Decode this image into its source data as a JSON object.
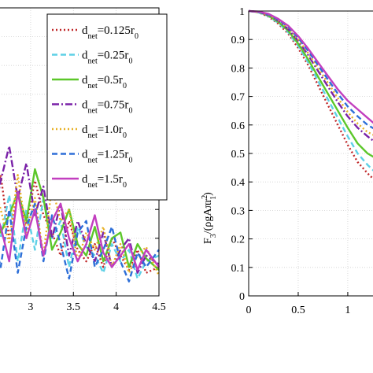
{
  "chart_data": [
    {
      "type": "line",
      "title": "",
      "xlabel": "",
      "ylabel": "",
      "x_ticks": [
        "3",
        "3.5",
        "4",
        "4.5"
      ],
      "xlim": [
        2.55,
        4.5
      ],
      "ylim": [
        0,
        1
      ],
      "grid": true,
      "legend_position": "top-right",
      "series": [
        {
          "name": "d_net=0.125r_0",
          "label_main": "d",
          "label_sub": "net",
          "label_rest": "=0.125r",
          "label_sub2": "0",
          "color": "#c0282a",
          "dash": "2,3",
          "x": [
            2.55,
            2.65,
            2.75,
            2.85,
            2.95,
            3.05,
            3.15,
            3.25,
            3.35,
            3.45,
            3.55,
            3.65,
            3.75,
            3.85,
            3.95,
            4.05,
            4.15,
            4.25,
            4.35,
            4.5
          ],
          "y": [
            0.33,
            0.42,
            0.2,
            0.36,
            0.25,
            0.4,
            0.28,
            0.22,
            0.14,
            0.26,
            0.16,
            0.12,
            0.18,
            0.1,
            0.2,
            0.14,
            0.09,
            0.16,
            0.08,
            0.1
          ]
        },
        {
          "name": "d_net=0.25r_0",
          "label_main": "d",
          "label_sub": "net",
          "label_rest": "=0.25r",
          "label_sub2": "0",
          "color": "#5ed0e6",
          "dash": "7,4",
          "x": [
            2.55,
            2.65,
            2.75,
            2.85,
            2.95,
            3.05,
            3.15,
            3.25,
            3.35,
            3.45,
            3.55,
            3.65,
            3.75,
            3.85,
            3.95,
            4.05,
            4.15,
            4.25,
            4.35,
            4.5
          ],
          "y": [
            0.28,
            0.2,
            0.35,
            0.12,
            0.3,
            0.16,
            0.34,
            0.2,
            0.26,
            0.1,
            0.24,
            0.17,
            0.14,
            0.08,
            0.18,
            0.12,
            0.16,
            0.06,
            0.12,
            0.14
          ]
        },
        {
          "name": "d_net=0.5r_0",
          "label_main": "d",
          "label_sub": "net",
          "label_rest": "=0.5r",
          "label_sub2": "0",
          "color": "#5cc72a",
          "dash": "",
          "x": [
            2.55,
            2.65,
            2.75,
            2.85,
            2.95,
            3.05,
            3.15,
            3.25,
            3.35,
            3.45,
            3.55,
            3.65,
            3.75,
            3.85,
            3.95,
            4.05,
            4.15,
            4.25,
            4.35,
            4.5
          ],
          "y": [
            0.3,
            0.22,
            0.28,
            0.36,
            0.26,
            0.44,
            0.34,
            0.16,
            0.22,
            0.3,
            0.18,
            0.14,
            0.24,
            0.12,
            0.2,
            0.22,
            0.1,
            0.18,
            0.13,
            0.09
          ]
        },
        {
          "name": "d_net=0.75r_0",
          "label_main": "d",
          "label_sub": "net",
          "label_rest": "=0.75r",
          "label_sub2": "0",
          "color": "#7a22a8",
          "dash": "9,3,2,3",
          "x": [
            2.55,
            2.65,
            2.75,
            2.85,
            2.95,
            3.05,
            3.15,
            3.25,
            3.35,
            3.45,
            3.55,
            3.65,
            3.75,
            3.85,
            3.95,
            4.05,
            4.15,
            4.25,
            4.35,
            4.5
          ],
          "y": [
            0.25,
            0.4,
            0.52,
            0.34,
            0.46,
            0.28,
            0.38,
            0.2,
            0.32,
            0.14,
            0.26,
            0.18,
            0.12,
            0.22,
            0.1,
            0.16,
            0.2,
            0.08,
            0.14,
            0.11
          ]
        },
        {
          "name": "d_net=1.0r_0",
          "label_main": "d",
          "label_sub": "net",
          "label_rest": "=1.0r",
          "label_sub2": "0",
          "color": "#e8b023",
          "dash": "2,3",
          "x": [
            2.55,
            2.65,
            2.75,
            2.85,
            2.95,
            3.05,
            3.15,
            3.25,
            3.35,
            3.45,
            3.55,
            3.65,
            3.75,
            3.85,
            3.95,
            4.05,
            4.15,
            4.25,
            4.35,
            4.5
          ],
          "y": [
            0.4,
            0.3,
            0.18,
            0.42,
            0.22,
            0.34,
            0.14,
            0.38,
            0.26,
            0.3,
            0.12,
            0.22,
            0.16,
            0.24,
            0.1,
            0.18,
            0.08,
            0.14,
            0.17,
            0.07
          ]
        },
        {
          "name": "d_net=1.25r_0",
          "label_main": "d",
          "label_sub": "net",
          "label_rest": "=1.25r",
          "label_sub2": "0",
          "color": "#2e6fd8",
          "dash": "7,4",
          "x": [
            2.55,
            2.65,
            2.75,
            2.85,
            2.95,
            3.05,
            3.15,
            3.25,
            3.35,
            3.45,
            3.55,
            3.65,
            3.75,
            3.85,
            3.95,
            4.05,
            4.15,
            4.25,
            4.35,
            4.5
          ],
          "y": [
            0.22,
            0.1,
            0.3,
            0.08,
            0.24,
            0.32,
            0.12,
            0.28,
            0.18,
            0.06,
            0.22,
            0.26,
            0.1,
            0.16,
            0.24,
            0.12,
            0.05,
            0.15,
            0.1,
            0.16
          ]
        },
        {
          "name": "d_net=1.5r_0",
          "label_main": "d",
          "label_sub": "net",
          "label_rest": "=1.5r",
          "label_sub2": "0",
          "color": "#c23fbf",
          "dash": "",
          "x": [
            2.55,
            2.65,
            2.75,
            2.85,
            2.95,
            3.05,
            3.15,
            3.25,
            3.35,
            3.45,
            3.55,
            3.65,
            3.75,
            3.85,
            3.95,
            4.05,
            4.15,
            4.25,
            4.35,
            4.5
          ],
          "y": [
            0.32,
            0.24,
            0.12,
            0.36,
            0.2,
            0.3,
            0.14,
            0.26,
            0.32,
            0.2,
            0.12,
            0.18,
            0.28,
            0.15,
            0.1,
            0.14,
            0.18,
            0.09,
            0.16,
            0.1
          ]
        }
      ]
    },
    {
      "type": "line",
      "title": "",
      "ylabel_main": "F",
      "ylabel_sub": "3",
      "ylabel_mid": "/(ρgAπr",
      "ylabel_sup": "2",
      "ylabel_sub2": "1",
      "ylabel_end": ")",
      "xlabel": "",
      "x_ticks": [
        "0",
        "0.5",
        "1"
      ],
      "y_ticks": [
        "0",
        "0.1",
        "0.2",
        "0.3",
        "0.4",
        "0.5",
        "0.6",
        "0.7",
        "0.8",
        "0.9",
        "1"
      ],
      "xlim": [
        0,
        1.35
      ],
      "ylim": [
        0,
        1
      ],
      "grid": true,
      "series": [
        {
          "name": "d_net=0.125r_0",
          "color": "#c0282a",
          "dash": "2,3",
          "x": [
            0,
            0.1,
            0.2,
            0.3,
            0.4,
            0.5,
            0.6,
            0.7,
            0.8,
            0.9,
            1.0,
            1.1,
            1.2,
            1.35
          ],
          "y": [
            1,
            0.995,
            0.98,
            0.955,
            0.92,
            0.87,
            0.81,
            0.74,
            0.67,
            0.6,
            0.53,
            0.47,
            0.43,
            0.38
          ]
        },
        {
          "name": "d_net=0.25r_0",
          "color": "#5ed0e6",
          "dash": "7,4",
          "x": [
            0,
            0.1,
            0.2,
            0.3,
            0.4,
            0.5,
            0.6,
            0.7,
            0.8,
            0.9,
            1.0,
            1.1,
            1.2,
            1.35
          ],
          "y": [
            1,
            0.995,
            0.982,
            0.958,
            0.925,
            0.878,
            0.82,
            0.755,
            0.69,
            0.625,
            0.56,
            0.5,
            0.46,
            0.41
          ]
        },
        {
          "name": "d_net=0.5r_0",
          "color": "#5cc72a",
          "dash": "",
          "x": [
            0,
            0.1,
            0.2,
            0.3,
            0.4,
            0.5,
            0.6,
            0.7,
            0.8,
            0.9,
            1.0,
            1.1,
            1.2,
            1.35
          ],
          "y": [
            1,
            0.996,
            0.984,
            0.962,
            0.93,
            0.885,
            0.83,
            0.77,
            0.71,
            0.65,
            0.59,
            0.535,
            0.5,
            0.47
          ]
        },
        {
          "name": "d_net=0.75r_0",
          "color": "#7a22a8",
          "dash": "9,3,2,3",
          "x": [
            0,
            0.1,
            0.2,
            0.3,
            0.4,
            0.5,
            0.6,
            0.7,
            0.8,
            0.9,
            1.0,
            1.1,
            1.2,
            1.35
          ],
          "y": [
            1,
            0.996,
            0.986,
            0.966,
            0.936,
            0.895,
            0.845,
            0.79,
            0.735,
            0.68,
            0.63,
            0.59,
            0.56,
            0.52
          ]
        },
        {
          "name": "d_net=1.0r_0",
          "color": "#e8b023",
          "dash": "2,3",
          "x": [
            0,
            0.1,
            0.2,
            0.3,
            0.4,
            0.5,
            0.6,
            0.7,
            0.8,
            0.9,
            1.0,
            1.1,
            1.2,
            1.35
          ],
          "y": [
            1,
            0.997,
            0.987,
            0.968,
            0.94,
            0.9,
            0.852,
            0.8,
            0.748,
            0.695,
            0.645,
            0.605,
            0.575,
            0.55
          ]
        },
        {
          "name": "d_net=1.25r_0",
          "color": "#2e6fd8",
          "dash": "7,4",
          "x": [
            0,
            0.1,
            0.2,
            0.3,
            0.4,
            0.5,
            0.6,
            0.7,
            0.8,
            0.9,
            1.0,
            1.1,
            1.2,
            1.35
          ],
          "y": [
            1,
            0.997,
            0.988,
            0.97,
            0.944,
            0.906,
            0.86,
            0.81,
            0.76,
            0.71,
            0.665,
            0.63,
            0.6,
            0.57
          ]
        },
        {
          "name": "d_net=1.5r_0",
          "color": "#c23fbf",
          "dash": "",
          "x": [
            0,
            0.1,
            0.2,
            0.3,
            0.4,
            0.5,
            0.6,
            0.7,
            0.8,
            0.9,
            1.0,
            1.1,
            1.2,
            1.35
          ],
          "y": [
            1,
            0.998,
            0.99,
            0.972,
            0.948,
            0.912,
            0.868,
            0.82,
            0.772,
            0.725,
            0.685,
            0.655,
            0.625,
            0.58
          ]
        }
      ]
    }
  ]
}
